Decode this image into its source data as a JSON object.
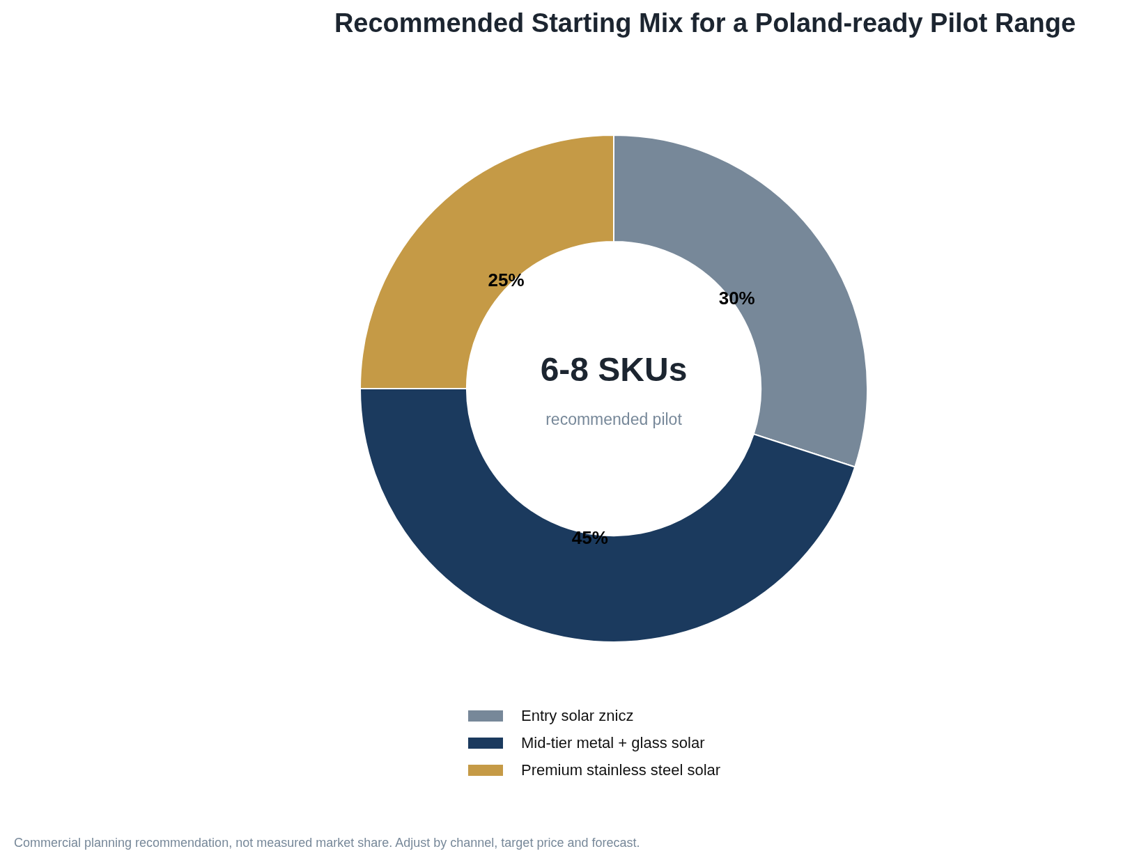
{
  "chart_data": {
    "type": "donut",
    "title": "Recommended Starting Mix for a Poland-ready Pilot Range",
    "categories": [
      "Entry solar znicz",
      "Mid-tier metal + glass solar",
      "Premium stainless steel solar"
    ],
    "values": [
      30,
      45,
      25
    ],
    "colors": [
      "#778899",
      "#1b3a5e",
      "#c59a46"
    ],
    "value_labels": [
      "30%",
      "45%",
      "25%"
    ],
    "legend": "bottom",
    "annotations": [
      "6-8 SKUs",
      "recommended pilot",
      "Commercial planning recommendation, not measured market share. Adjust by channel, target price and forecast."
    ]
  }
}
